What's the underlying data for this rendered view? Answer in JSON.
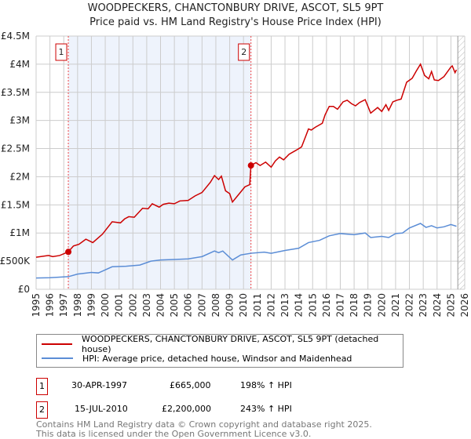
{
  "title": "WOODPECKERS, CHANCTONBURY DRIVE, ASCOT, SL5 9PT",
  "subtitle": "Price paid vs. HM Land Registry's House Price Index (HPI)",
  "chart_data": {
    "type": "line",
    "xlim": [
      1995,
      2026
    ],
    "ylim": [
      0,
      4500000
    ],
    "yticks": [
      0,
      500000,
      1000000,
      1500000,
      2000000,
      2500000,
      3000000,
      3500000,
      4000000,
      4500000
    ],
    "ytick_labels": [
      "£0",
      "£500K",
      "£1M",
      "£1.5M",
      "£2M",
      "£2.5M",
      "£3M",
      "£3.5M",
      "£4M",
      "£4.5M"
    ],
    "xticks": [
      1995,
      1996,
      1997,
      1998,
      1999,
      2000,
      2001,
      2002,
      2003,
      2004,
      2005,
      2006,
      2007,
      2008,
      2009,
      2010,
      2011,
      2012,
      2013,
      2014,
      2015,
      2016,
      2017,
      2018,
      2019,
      2020,
      2021,
      2022,
      2023,
      2024,
      2025,
      2026
    ],
    "grid": true,
    "shaded_range": [
      1997.33,
      2010.54
    ],
    "hatched_from": 2025.5,
    "series": [
      {
        "name": "WOODPECKERS, CHANCTONBURY DRIVE, ASCOT, SL5 9PT (detached house)",
        "color": "#cc0000",
        "x": [
          1995,
          1995.9,
          1996.2,
          1996.7,
          1997.33,
          1997.7,
          1998.1,
          1998.6,
          1999.1,
          1999.8,
          2000.5,
          2001.1,
          2001.4,
          2001.7,
          2002.1,
          2002.7,
          2003.1,
          2003.4,
          2003.9,
          2004.2,
          2004.6,
          2005,
          2005.4,
          2006,
          2006.5,
          2007,
          2007.6,
          2007.9,
          2008.2,
          2008.4,
          2008.7,
          2009,
          2009.2,
          2009.7,
          2010.1,
          2010.45,
          2010.54,
          2010.9,
          2011.2,
          2011.6,
          2012,
          2012.3,
          2012.6,
          2012.9,
          2013.3,
          2013.8,
          2014.2,
          2014.5,
          2014.7,
          2014.9,
          2015.2,
          2015.7,
          2015.9,
          2016.2,
          2016.5,
          2016.8,
          2017.2,
          2017.5,
          2017.8,
          2018.1,
          2018.4,
          2018.8,
          2019.2,
          2019.7,
          2020,
          2020.3,
          2020.5,
          2020.8,
          2021.1,
          2021.4,
          2021.8,
          2022.2,
          2022.5,
          2022.8,
          2023.1,
          2023.4,
          2023.6,
          2023.8,
          2024.1,
          2024.5,
          2025,
          2025.1,
          2025.3,
          2025.4
        ],
        "y": [
          570000,
          600000,
          580000,
          600000,
          665000,
          770000,
          800000,
          890000,
          830000,
          980000,
          1200000,
          1180000,
          1250000,
          1290000,
          1280000,
          1440000,
          1430000,
          1520000,
          1460000,
          1510000,
          1530000,
          1520000,
          1570000,
          1580000,
          1660000,
          1720000,
          1900000,
          2020000,
          1950000,
          2010000,
          1750000,
          1700000,
          1550000,
          1700000,
          1820000,
          1860000,
          2200000,
          2250000,
          2200000,
          2260000,
          2170000,
          2280000,
          2350000,
          2300000,
          2400000,
          2470000,
          2530000,
          2720000,
          2850000,
          2830000,
          2880000,
          2950000,
          3100000,
          3250000,
          3250000,
          3200000,
          3330000,
          3360000,
          3300000,
          3260000,
          3320000,
          3370000,
          3130000,
          3230000,
          3160000,
          3280000,
          3180000,
          3330000,
          3360000,
          3380000,
          3680000,
          3750000,
          3880000,
          4000000,
          3800000,
          3740000,
          3870000,
          3720000,
          3710000,
          3780000,
          3950000,
          3970000,
          3850000,
          3900000
        ]
      },
      {
        "name": "HPI: Average price, detached house, Windsor and Maidenhead",
        "color": "#5b8dd6",
        "x": [
          1995,
          1996,
          1997.33,
          1998,
          1999,
          1999.5,
          2000.5,
          2001.5,
          2002.5,
          2003.3,
          2004,
          2005,
          2006,
          2007,
          2007.9,
          2008.2,
          2008.5,
          2009.2,
          2009.8,
          2010.54,
          2011.5,
          2012,
          2013,
          2014,
          2014.7,
          2015.5,
          2016.2,
          2017,
          2018,
          2018.8,
          2019.2,
          2020,
          2020.5,
          2021,
          2021.5,
          2022,
          2022.8,
          2023.2,
          2023.6,
          2024,
          2024.5,
          2025,
          2025.4
        ],
        "y": [
          200000,
          205000,
          224000,
          270000,
          300000,
          290000,
          400000,
          410000,
          430000,
          500000,
          520000,
          530000,
          540000,
          580000,
          680000,
          650000,
          680000,
          520000,
          610000,
          640000,
          660000,
          640000,
          690000,
          730000,
          830000,
          870000,
          950000,
          990000,
          970000,
          1000000,
          920000,
          940000,
          920000,
          990000,
          1000000,
          1090000,
          1170000,
          1100000,
          1130000,
          1090000,
          1110000,
          1150000,
          1120000
        ]
      }
    ],
    "annotations": [
      {
        "label": "1",
        "x": 1997.33,
        "y": 665000
      },
      {
        "label": "2",
        "x": 2010.54,
        "y": 2200000
      }
    ]
  },
  "legend": {
    "items": [
      {
        "label": "WOODPECKERS, CHANCTONBURY DRIVE, ASCOT, SL5 9PT (detached house)",
        "color": "#cc0000"
      },
      {
        "label": "HPI: Average price, detached house, Windsor and Maidenhead",
        "color": "#5b8dd6"
      }
    ]
  },
  "sales": [
    {
      "num": "1",
      "date": "30-APR-1997",
      "price": "£665,000",
      "hpi": "198% ↑ HPI"
    },
    {
      "num": "2",
      "date": "15-JUL-2010",
      "price": "£2,200,000",
      "hpi": "243% ↑ HPI"
    }
  ],
  "footer": {
    "line1": "Contains HM Land Registry data © Crown copyright and database right 2025.",
    "line2": "This data is licensed under the Open Government Licence v3.0."
  }
}
